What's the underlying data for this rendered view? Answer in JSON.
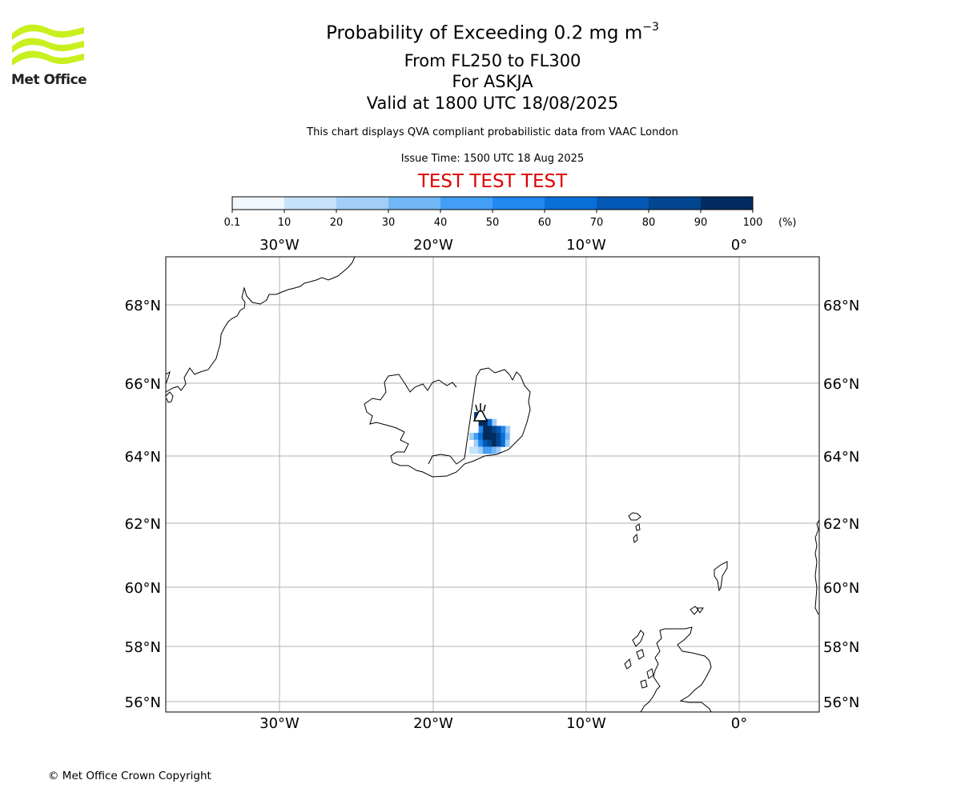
{
  "logo": {
    "text": "Met Office",
    "colors": [
      "#c8f01e"
    ]
  },
  "title": {
    "main_prefix": "Probability of Exceeding 0.2 mg m",
    "main_sup": "−3",
    "flight_levels": "From FL250 to FL300",
    "volcano": "For ASKJA",
    "valid": "Valid at 1800 UTC 18/08/2025"
  },
  "subtitle": "This chart displays QVA compliant probabilistic data from VAAC London",
  "issue_time": "Issue Time: 1500 UTC 18 Aug 2025",
  "test_banner": "TEST TEST TEST",
  "test_color": "#e00000",
  "colorbar": {
    "ticks": [
      "0.1",
      "10",
      "20",
      "30",
      "40",
      "50",
      "60",
      "70",
      "80",
      "90",
      "100"
    ],
    "unit": "(%)",
    "colors": [
      "#f0f7ff",
      "#c6e2fb",
      "#a3cdf7",
      "#71b6f5",
      "#439ef5",
      "#2088f0",
      "#0a6fd8",
      "#0458b6",
      "#024690",
      "#022c5f"
    ]
  },
  "map": {
    "lon_labels": [
      "30°W",
      "20°W",
      "10°W",
      "0°"
    ],
    "lat_labels": [
      "68°N",
      "66°N",
      "64°N",
      "62°N",
      "60°N",
      "58°N",
      "56°N"
    ],
    "volcano_marker": "volcano-icon"
  },
  "copyright": "© Met Office Crown Copyright"
}
